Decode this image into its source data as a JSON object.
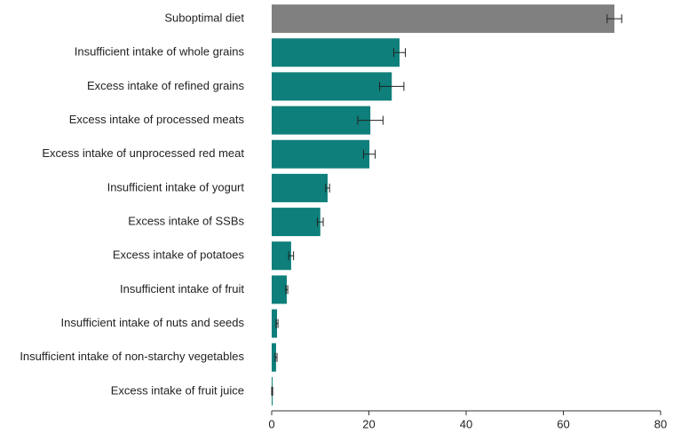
{
  "chart_data": {
    "type": "bar",
    "orientation": "horizontal",
    "categories": [
      "Suboptimal diet",
      "Insufficient intake of whole grains",
      "Excess intake of refined grains",
      "Excess intake of processed meats",
      "Excess intake of unprocessed red meat",
      "Insufficient intake of yogurt",
      "Excess intake of SSBs",
      "Excess intake of potatoes",
      "Insufficient intake of fruit",
      "Insufficient intake of nuts and seeds",
      "Insufficient intake of non-starchy vegetables",
      "Excess intake of fruit juice"
    ],
    "values": [
      70.5,
      26.3,
      24.7,
      20.3,
      20.1,
      11.5,
      10.0,
      4.0,
      3.1,
      1.1,
      0.9,
      0.1
    ],
    "errors": [
      1.5,
      1.2,
      2.5,
      2.6,
      1.2,
      0.4,
      0.6,
      0.5,
      0.2,
      0.2,
      0.2,
      0.1
    ],
    "colors": [
      "#808080",
      "#0e7f7a",
      "#0e7f7a",
      "#0e7f7a",
      "#0e7f7a",
      "#0e7f7a",
      "#0e7f7a",
      "#0e7f7a",
      "#0e7f7a",
      "#0e7f7a",
      "#0e7f7a",
      "#0e7f7a"
    ],
    "xlim": [
      0,
      80
    ],
    "xticks": [
      0,
      20,
      40,
      60,
      80
    ]
  }
}
